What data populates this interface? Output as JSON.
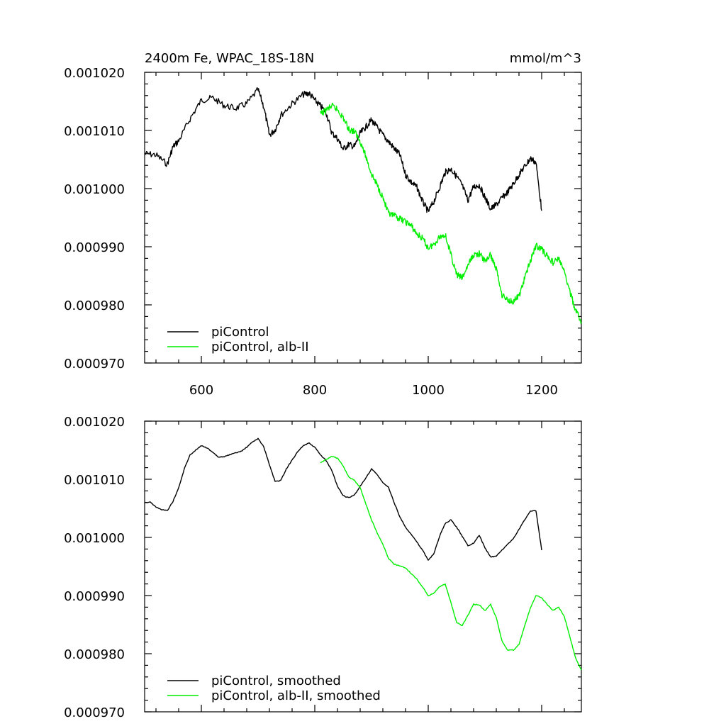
{
  "chart_data": [
    {
      "type": "line",
      "title": "2400m Fe, WPAC_18S-18N",
      "units": "mmol/m^3",
      "xlim": [
        500,
        1270
      ],
      "ylim": [
        0.00097,
        0.00102
      ],
      "x_ticks": [
        600,
        800,
        1000,
        1200
      ],
      "y_ticks": [
        0.00097,
        0.00098,
        0.00099,
        0.001,
        0.00101,
        0.00102
      ],
      "x_tick_labels": [
        "600",
        "800",
        "1000",
        "1200"
      ],
      "y_tick_labels": [
        "0.000970",
        "0.000980",
        "0.000990",
        "0.001000",
        "0.001010",
        "0.001020"
      ],
      "grid": false,
      "legend_position": "bottom-left",
      "series": [
        {
          "name": "piControl",
          "color": "#000000",
          "x": [
            500,
            520,
            540,
            550,
            560,
            580,
            600,
            620,
            640,
            660,
            680,
            700,
            710,
            720,
            730,
            740,
            760,
            780,
            790,
            800,
            810,
            820,
            830,
            840,
            850,
            860,
            870,
            880,
            890,
            900,
            910,
            920,
            930,
            940,
            950,
            960,
            970,
            980,
            990,
            1000,
            1010,
            1020,
            1030,
            1040,
            1050,
            1060,
            1070,
            1080,
            1090,
            1100,
            1110,
            1120,
            1130,
            1140,
            1150,
            1160,
            1170,
            1180,
            1190,
            1200
          ],
          "values": [
            0.001006,
            0.0010058,
            0.0010042,
            0.0010072,
            0.0010082,
            0.001012,
            0.0010152,
            0.0010156,
            0.0010143,
            0.0010138,
            0.0010146,
            0.001017,
            0.0010141,
            0.0010092,
            0.0010101,
            0.0010126,
            0.0010146,
            0.0010162,
            0.0010164,
            0.0010152,
            0.0010142,
            0.0010131,
            0.0010096,
            0.0010086,
            0.0010068,
            0.0010076,
            0.0010072,
            0.0010095,
            0.0010106,
            0.0010118,
            0.0010105,
            0.0010092,
            0.0010081,
            0.0010069,
            0.0010058,
            0.0010024,
            0.0010011,
            0.0010002,
            0.0009978,
            0.000996,
            0.0009978,
            0.0010002,
            0.0010028,
            0.0010034,
            0.0010021,
            0.0010005,
            0.000998,
            0.0010003,
            0.0010006,
            0.0009985,
            0.0009965,
            0.0009972,
            0.0009984,
            0.0009994,
            0.0010008,
            0.0010024,
            0.0010038,
            0.0010052,
            0.0010045,
            0.0009962
          ]
        },
        {
          "name": "piControl, alb-II",
          "color": "#00ee00",
          "x": [
            810,
            820,
            830,
            840,
            850,
            860,
            870,
            880,
            890,
            900,
            910,
            920,
            930,
            940,
            950,
            960,
            970,
            980,
            990,
            1000,
            1010,
            1020,
            1030,
            1040,
            1050,
            1060,
            1070,
            1080,
            1090,
            1100,
            1110,
            1120,
            1130,
            1140,
            1150,
            1160,
            1170,
            1180,
            1190,
            1200,
            1210,
            1220,
            1230,
            1240,
            1250,
            1260,
            1270
          ],
          "values": [
            0.0010128,
            0.0010135,
            0.0010142,
            0.0010136,
            0.0010122,
            0.0010102,
            0.0010098,
            0.0010082,
            0.0010055,
            0.0010025,
            0.0010006,
            0.0009985,
            0.0009956,
            0.0009953,
            0.0009948,
            0.0009943,
            0.0009936,
            0.0009922,
            0.0009914,
            0.0009898,
            0.0009904,
            0.0009917,
            0.0009921,
            0.0009886,
            0.0009852,
            0.0009846,
            0.0009868,
            0.0009886,
            0.0009888,
            0.0009875,
            0.0009886,
            0.0009862,
            0.0009818,
            0.0009808,
            0.0009806,
            0.0009815,
            0.0009845,
            0.0009876,
            0.0009902,
            0.0009896,
            0.0009884,
            0.0009873,
            0.000988,
            0.0009856,
            0.0009822,
            0.000979,
            0.000977
          ]
        }
      ]
    },
    {
      "type": "line",
      "title": "",
      "xlim": [
        500,
        1270
      ],
      "ylim": [
        0.00097,
        0.00102
      ],
      "x_ticks": [
        600,
        800,
        1000,
        1200
      ],
      "y_ticks": [
        0.00097,
        0.00098,
        0.00099,
        0.001,
        0.00101,
        0.00102
      ],
      "y_tick_labels": [
        "0.000970",
        "0.000980",
        "0.000990",
        "0.001000",
        "0.001010",
        "0.001020"
      ],
      "grid": false,
      "legend_position": "bottom-left",
      "series": [
        {
          "name": "piControl, smoothed",
          "color": "#000000",
          "x": [
            500,
            510,
            520,
            530,
            540,
            550,
            560,
            570,
            580,
            590,
            600,
            610,
            620,
            630,
            640,
            650,
            660,
            670,
            680,
            690,
            700,
            710,
            720,
            730,
            740,
            750,
            760,
            770,
            780,
            790,
            800,
            810,
            820,
            830,
            840,
            850,
            860,
            870,
            880,
            890,
            900,
            910,
            920,
            930,
            940,
            950,
            960,
            970,
            980,
            990,
            1000,
            1010,
            1020,
            1030,
            1040,
            1050,
            1060,
            1070,
            1080,
            1090,
            1100,
            1110,
            1120,
            1130,
            1140,
            1150,
            1160,
            1170,
            1180,
            1190,
            1200
          ],
          "values": [
            0.001006,
            0.0010061,
            0.0010052,
            0.0010048,
            0.0010046,
            0.0010062,
            0.0010085,
            0.0010118,
            0.0010142,
            0.001015,
            0.0010158,
            0.0010154,
            0.0010146,
            0.0010138,
            0.0010139,
            0.0010142,
            0.0010145,
            0.0010148,
            0.0010155,
            0.0010164,
            0.001017,
            0.0010156,
            0.0010125,
            0.0010096,
            0.0010098,
            0.0010118,
            0.0010133,
            0.0010148,
            0.0010158,
            0.0010162,
            0.0010155,
            0.0010142,
            0.0010132,
            0.0010115,
            0.0010088,
            0.0010072,
            0.0010068,
            0.0010073,
            0.0010088,
            0.0010102,
            0.0010118,
            0.0010108,
            0.0010094,
            0.0010086,
            0.001006,
            0.0010035,
            0.0010018,
            0.0010005,
            0.0009992,
            0.0009978,
            0.0009961,
            0.0009972,
            0.0010002,
            0.0010024,
            0.001003,
            0.0010018,
            0.0010002,
            0.0009986,
            0.000999,
            0.0010004,
            0.0009982,
            0.0009966,
            0.0009968,
            0.0009978,
            0.0009988,
            0.0009998,
            0.0010014,
            0.001003,
            0.0010045,
            0.0010046,
            0.0009978
          ]
        },
        {
          "name": "piControl, alb-II, smoothed",
          "color": "#00ee00",
          "x": [
            810,
            820,
            830,
            840,
            850,
            860,
            870,
            880,
            890,
            900,
            910,
            920,
            930,
            940,
            950,
            960,
            970,
            980,
            990,
            1000,
            1010,
            1020,
            1030,
            1040,
            1050,
            1060,
            1070,
            1080,
            1090,
            1100,
            1110,
            1120,
            1130,
            1140,
            1150,
            1160,
            1170,
            1180,
            1190,
            1200,
            1210,
            1220,
            1230,
            1240,
            1250,
            1260,
            1270
          ],
          "values": [
            0.0010128,
            0.0010134,
            0.001014,
            0.0010136,
            0.0010123,
            0.0010104,
            0.0010098,
            0.0010086,
            0.0010058,
            0.001003,
            0.0010008,
            0.0009988,
            0.0009964,
            0.0009954,
            0.0009951,
            0.0009947,
            0.0009938,
            0.0009928,
            0.0009915,
            0.00099,
            0.0009904,
            0.0009915,
            0.000992,
            0.0009888,
            0.0009854,
            0.0009848,
            0.0009866,
            0.0009885,
            0.0009884,
            0.0009874,
            0.0009885,
            0.0009862,
            0.0009822,
            0.0009806,
            0.0009806,
            0.0009816,
            0.0009848,
            0.0009878,
            0.00099,
            0.0009896,
            0.0009884,
            0.0009874,
            0.000988,
            0.0009864,
            0.0009828,
            0.0009792,
            0.0009772
          ]
        }
      ]
    }
  ]
}
